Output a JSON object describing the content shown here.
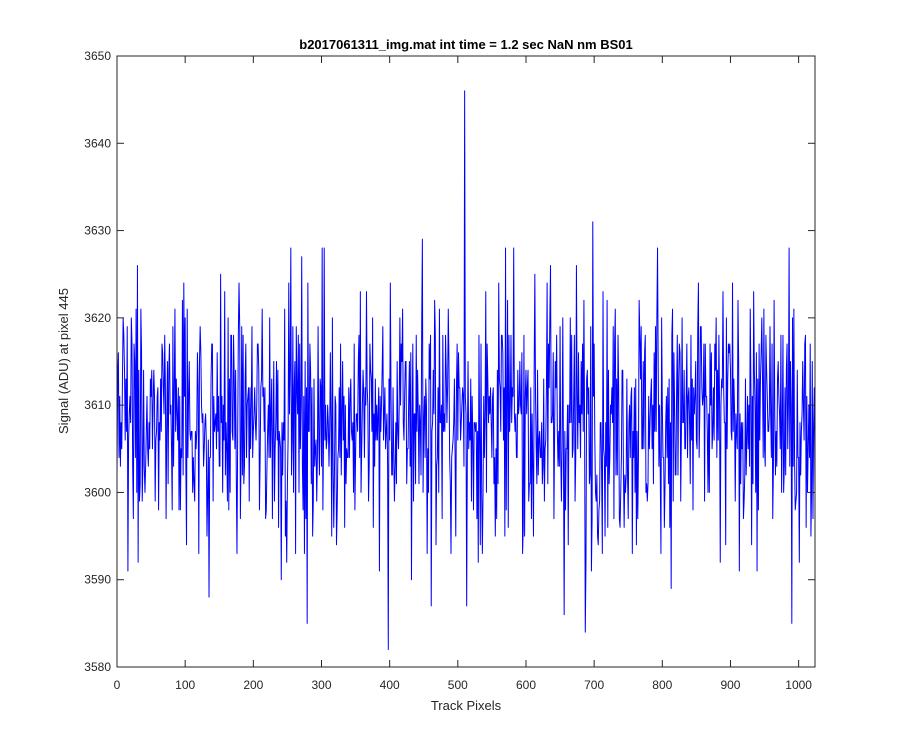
{
  "chart_data": {
    "type": "line",
    "title": "b2017061311_img.mat int time = 1.2 sec  NaN nm BS01",
    "xlabel": "Track Pixels",
    "ylabel": "Signal (ADU) at pixel 445",
    "xlim": [
      0,
      1024
    ],
    "ylim": [
      3580,
      3650
    ],
    "xticks": [
      "0",
      "100",
      "200",
      "300",
      "400",
      "500",
      "600",
      "700",
      "800",
      "900",
      "1000"
    ],
    "yticks": [
      "3580",
      "3590",
      "3600",
      "3610",
      "3620",
      "3630",
      "3640",
      "3650"
    ],
    "grid": false,
    "series": [
      {
        "color": "#0000ff",
        "noise": {
          "mean": 3608.5,
          "sigma": 7.5,
          "min": 3586,
          "max": 3628
        },
        "features": [
          {
            "x": 30,
            "y": 3626
          },
          {
            "x": 135,
            "y": 3588
          },
          {
            "x": 255,
            "y": 3628
          },
          {
            "x": 279,
            "y": 3585
          },
          {
            "x": 398,
            "y": 3582
          },
          {
            "x": 448,
            "y": 3629
          },
          {
            "x": 510,
            "y": 3646
          },
          {
            "x": 513,
            "y": 3587
          },
          {
            "x": 662,
            "y": 3594
          },
          {
            "x": 687,
            "y": 3584
          },
          {
            "x": 698,
            "y": 3631
          },
          {
            "x": 793,
            "y": 3628
          },
          {
            "x": 990,
            "y": 3585
          }
        ]
      }
    ]
  }
}
